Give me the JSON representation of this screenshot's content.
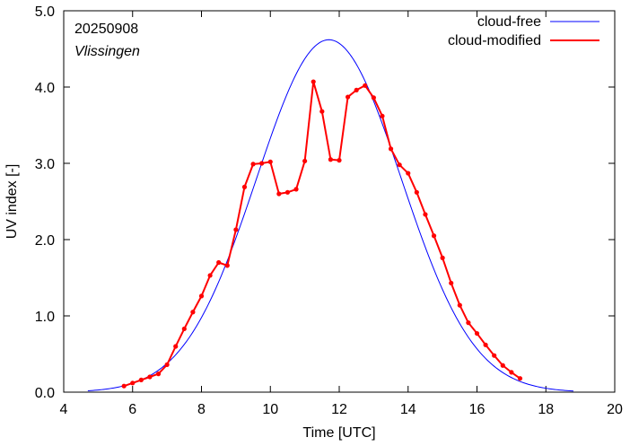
{
  "chart_data": {
    "type": "line",
    "title": "",
    "xlabel": "Time  [UTC]",
    "ylabel": "UV index  [-]",
    "xlim": [
      4,
      20
    ],
    "ylim": [
      0.0,
      5.0
    ],
    "x_ticks": [
      4,
      6,
      8,
      10,
      12,
      14,
      16,
      18,
      20
    ],
    "y_ticks": [
      0.0,
      1.0,
      2.0,
      3.0,
      4.0,
      5.0
    ],
    "y_tick_labels": [
      "0.0",
      "1.0",
      "2.0",
      "3.0",
      "4.0",
      "5.0"
    ],
    "grid": false,
    "legend_position": "top-right",
    "annotations": {
      "date": "20250908",
      "station": "Vlissingen"
    },
    "series": [
      {
        "name": "cloud-free",
        "color": "#0000ff",
        "style": "line",
        "peak_x": 11.7,
        "peak_y": 4.62,
        "start_x": 4.7,
        "end_x": 18.8,
        "sigma": 2.1
      },
      {
        "name": "cloud-modified",
        "color": "#ff0000",
        "style": "line-points",
        "x": [
          5.75,
          6.0,
          6.25,
          6.5,
          6.75,
          7.0,
          7.25,
          7.5,
          7.75,
          8.0,
          8.25,
          8.5,
          8.75,
          9.0,
          9.25,
          9.5,
          9.75,
          10.0,
          10.25,
          10.5,
          10.75,
          11.0,
          11.25,
          11.5,
          11.75,
          12.0,
          12.25,
          12.5,
          12.75,
          13.0,
          13.25,
          13.5,
          13.75,
          14.0,
          14.25,
          14.5,
          14.75,
          15.0,
          15.25,
          15.5,
          15.75,
          16.0,
          16.25,
          16.5,
          16.75,
          17.0,
          17.25
        ],
        "y": [
          0.08,
          0.12,
          0.16,
          0.2,
          0.24,
          0.36,
          0.6,
          0.83,
          1.05,
          1.26,
          1.53,
          1.7,
          1.66,
          2.13,
          2.69,
          2.99,
          3.0,
          3.02,
          2.6,
          2.62,
          2.66,
          3.03,
          4.07,
          3.68,
          3.05,
          3.04,
          3.87,
          3.96,
          4.02,
          3.86,
          3.62,
          3.19,
          2.98,
          2.87,
          2.62,
          2.33,
          2.05,
          1.76,
          1.43,
          1.14,
          0.91,
          0.77,
          0.62,
          0.48,
          0.35,
          0.26,
          0.18
        ]
      }
    ]
  }
}
